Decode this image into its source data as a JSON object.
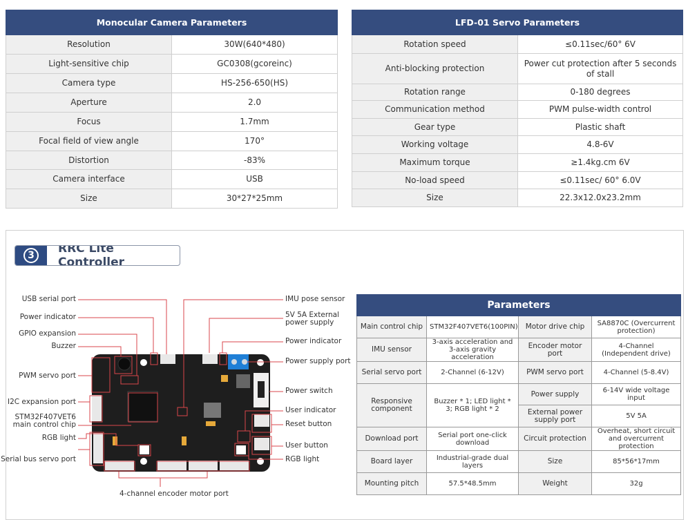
{
  "camera": {
    "title": "Monocular Camera Parameters",
    "rows": [
      {
        "k": "Resolution",
        "v": "30W(640*480)"
      },
      {
        "k": "Light-sensitive chip",
        "v": "GC0308(gcoreinc)"
      },
      {
        "k": "Camera type",
        "v": "HS-256-650(HS)"
      },
      {
        "k": "Aperture",
        "v": "2.0"
      },
      {
        "k": "Focus",
        "v": "1.7mm"
      },
      {
        "k": "Focal field of view angle",
        "v": "170°"
      },
      {
        "k": "Distortion",
        "v": "-83%"
      },
      {
        "k": "Camera interface",
        "v": "USB"
      },
      {
        "k": "Size",
        "v": "30*27*25mm"
      }
    ]
  },
  "servo": {
    "title": "LFD-01 Servo Parameters",
    "rows": [
      {
        "k": "Rotation speed",
        "v": "≤0.11sec/60° 6V"
      },
      {
        "k": "Anti-blocking protection",
        "v": "Power cut protection after 5 seconds of stall"
      },
      {
        "k": "Rotation range",
        "v": "0-180 degrees"
      },
      {
        "k": "Communication method",
        "v": "PWM pulse-width control"
      },
      {
        "k": "Gear type",
        "v": "Plastic shaft"
      },
      {
        "k": "Working voltage",
        "v": "4.8-6V"
      },
      {
        "k": "Maximum torque",
        "v": "≥1.4kg.cm 6V"
      },
      {
        "k": "No-load speed",
        "v": "≤0.11sec/ 60° 6.0V"
      },
      {
        "k": "Size",
        "v": "22.3x12.0x23.2mm"
      }
    ]
  },
  "controller": {
    "number": "3",
    "title": "RRC Lite Controller",
    "labels_left": [
      "USB serial port",
      "Power indicator",
      "GPIO expansion",
      "Buzzer",
      "PWM servo port",
      "I2C expansion port",
      "STM32F407VET6",
      "main control chip",
      "RGB light",
      "Serial bus servo port"
    ],
    "labels_right": [
      "IMU pose sensor",
      "5V 5A External",
      "power supply",
      "Power indicator",
      "Power supply port",
      "Power switch",
      "User indicator",
      "Reset button",
      "User button",
      "RGB light"
    ],
    "label_bottom": "4-channel encoder motor port"
  },
  "parameters": {
    "title": "Parameters",
    "rows": [
      [
        "Main control chip",
        "STM32F407VET6(100PIN)",
        "Motor drive chip",
        "SA8870C (Overcurrent protection)"
      ],
      [
        "IMU sensor",
        "3-axis acceleration and 3-axis gravity acceleration",
        "Encoder motor port",
        "4-Channel (Independent drive)"
      ],
      [
        "Serial servo port",
        "2-Channel (6-12V)",
        "PWM servo port",
        "4-Channel (5-8.4V)"
      ],
      [
        "Responsive component",
        "Buzzer * 1; LED light * 3; RGB light * 2",
        "Power supply",
        "6-14V wide voltage input"
      ],
      [
        "External power supply port",
        "5V 5A"
      ],
      [
        "Download port",
        "Serial port one-click download",
        "Circuit protection",
        "Overheat, short circuit and overcurrent protection"
      ],
      [
        "Board layer",
        "Industrial-grade dual layers",
        "Size",
        "85*56*17mm"
      ],
      [
        "Mounting pitch",
        "57.5*48.5mm",
        "Weight",
        "32g"
      ]
    ]
  },
  "colors": {
    "header": "#354d7f",
    "callout_line": "#d9464b",
    "board": "#1e1e1e"
  }
}
